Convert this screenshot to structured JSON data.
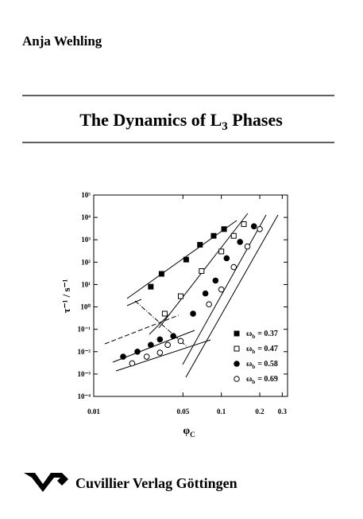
{
  "header": {
    "author": "Anja Wehling",
    "title": {
      "main": "The Dynamics of L",
      "subscript": "3",
      "rest": " Phases"
    }
  },
  "chart_data": {
    "type": "scatter",
    "xscale": "log",
    "yscale": "log",
    "xlabel": "φ",
    "xlabel_subscript": "C",
    "ylabel": "τ⁻¹ / s⁻¹",
    "xlim": [
      0.01,
      0.33
    ],
    "ylim": [
      0.0001,
      100000
    ],
    "xticks": [
      0.01,
      0.05,
      0.1,
      0.2,
      0.3
    ],
    "yticks": [
      {
        "value": 0.0001,
        "label": "10⁻⁴"
      },
      {
        "value": 0.001,
        "label": "10⁻³"
      },
      {
        "value": 0.01,
        "label": "10⁻²"
      },
      {
        "value": 0.1,
        "label": "10⁻¹"
      },
      {
        "value": 1,
        "label": "10⁰"
      },
      {
        "value": 10,
        "label": "10¹"
      },
      {
        "value": 100,
        "label": "10²"
      },
      {
        "value": 1000,
        "label": "10³"
      },
      {
        "value": 10000,
        "label": "10⁴"
      },
      {
        "value": 100000,
        "label": "10⁵"
      }
    ],
    "legend_symbol": "ω",
    "legend_subscript": "b",
    "series": [
      {
        "name": "= 0.37",
        "color": "#000000",
        "marker": "square",
        "filled": true,
        "x": [
          0.028,
          0.034,
          0.053,
          0.068,
          0.087,
          0.105
        ],
        "values": [
          8,
          30,
          130,
          600,
          1500,
          3000
        ]
      },
      {
        "name": "= 0.47",
        "color": "#000000",
        "marker": "square",
        "filled": false,
        "x": [
          0.036,
          0.048,
          0.07,
          0.1,
          0.125,
          0.15
        ],
        "values": [
          0.5,
          3,
          40,
          300,
          1500,
          5000
        ]
      },
      {
        "name": "= 0.58",
        "color": "#000000",
        "marker": "circle",
        "filled": true,
        "x": [
          0.017,
          0.022,
          0.028,
          0.033,
          0.042,
          0.06,
          0.075,
          0.09,
          0.11,
          0.14,
          0.18
        ],
        "values": [
          0.006,
          0.01,
          0.02,
          0.035,
          0.05,
          0.5,
          4,
          15,
          150,
          800,
          4000
        ]
      },
      {
        "name": "= 0.69",
        "color": "#000000",
        "marker": "circle",
        "filled": false,
        "x": [
          0.02,
          0.026,
          0.033,
          0.038,
          0.048,
          0.08,
          0.1,
          0.125,
          0.16,
          0.2
        ],
        "values": [
          0.003,
          0.006,
          0.009,
          0.02,
          0.03,
          1.3,
          6,
          60,
          500,
          3000
        ]
      }
    ]
  },
  "footer": {
    "publisher": "Cuvillier Verlag Göttingen"
  }
}
